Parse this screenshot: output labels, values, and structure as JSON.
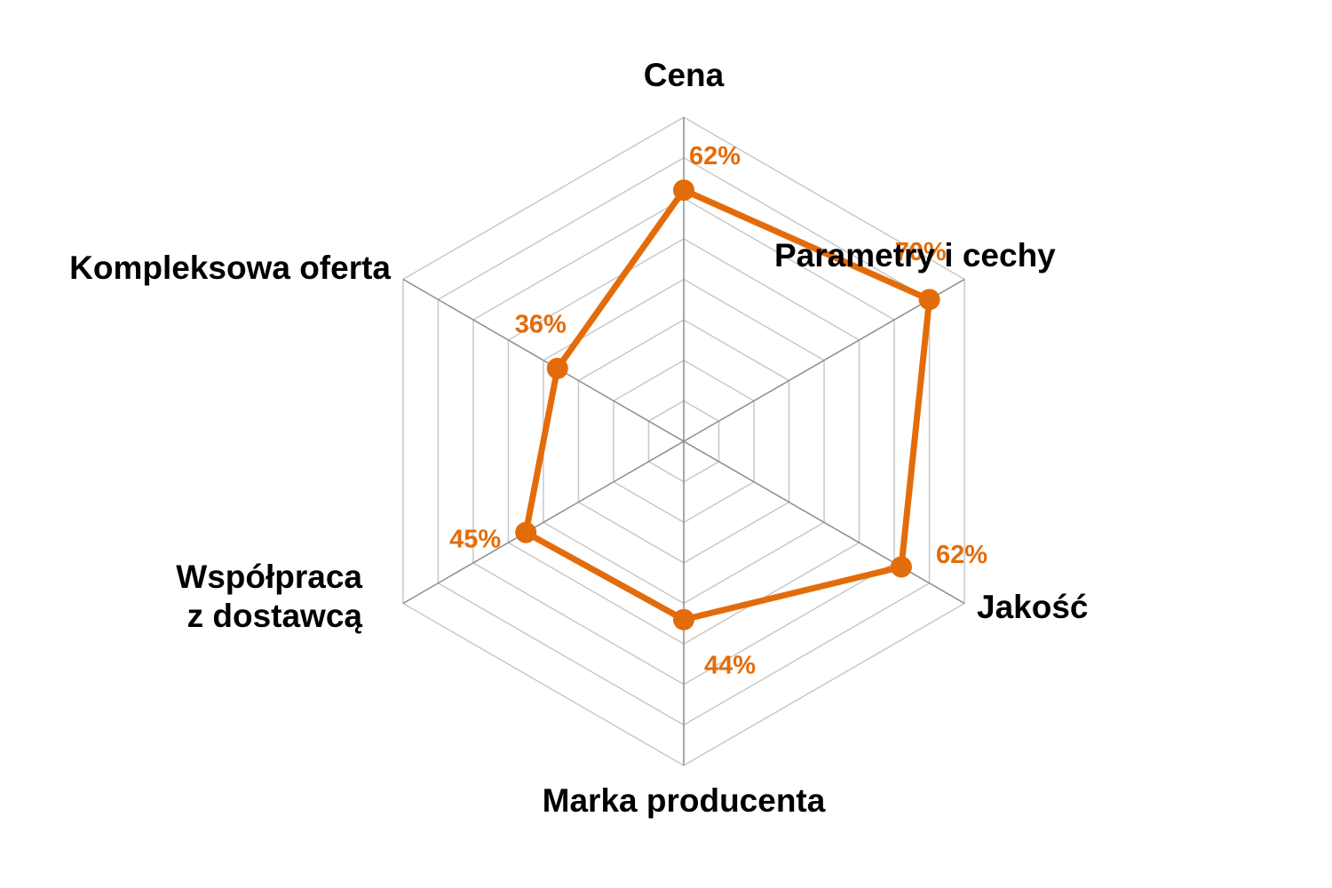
{
  "chart_data": {
    "type": "radar",
    "categories": [
      [
        "Cena"
      ],
      [
        "Parametry i cechy"
      ],
      [
        "Jakość"
      ],
      [
        "Marka producenta"
      ],
      [
        "Współpraca",
        "z dostawcą"
      ],
      [
        "Kompleksowa oferta"
      ]
    ],
    "values": [
      62,
      70,
      62,
      44,
      45,
      36
    ],
    "value_labels": [
      "62%",
      "70%",
      "62%",
      "44%",
      "45%",
      "36%"
    ],
    "rmin": 0,
    "rmax": 80,
    "ring_step": 10,
    "colors": {
      "series": "#E36C0A",
      "grid": "#C8C8C8",
      "spoke": "#8C8C8C"
    }
  }
}
